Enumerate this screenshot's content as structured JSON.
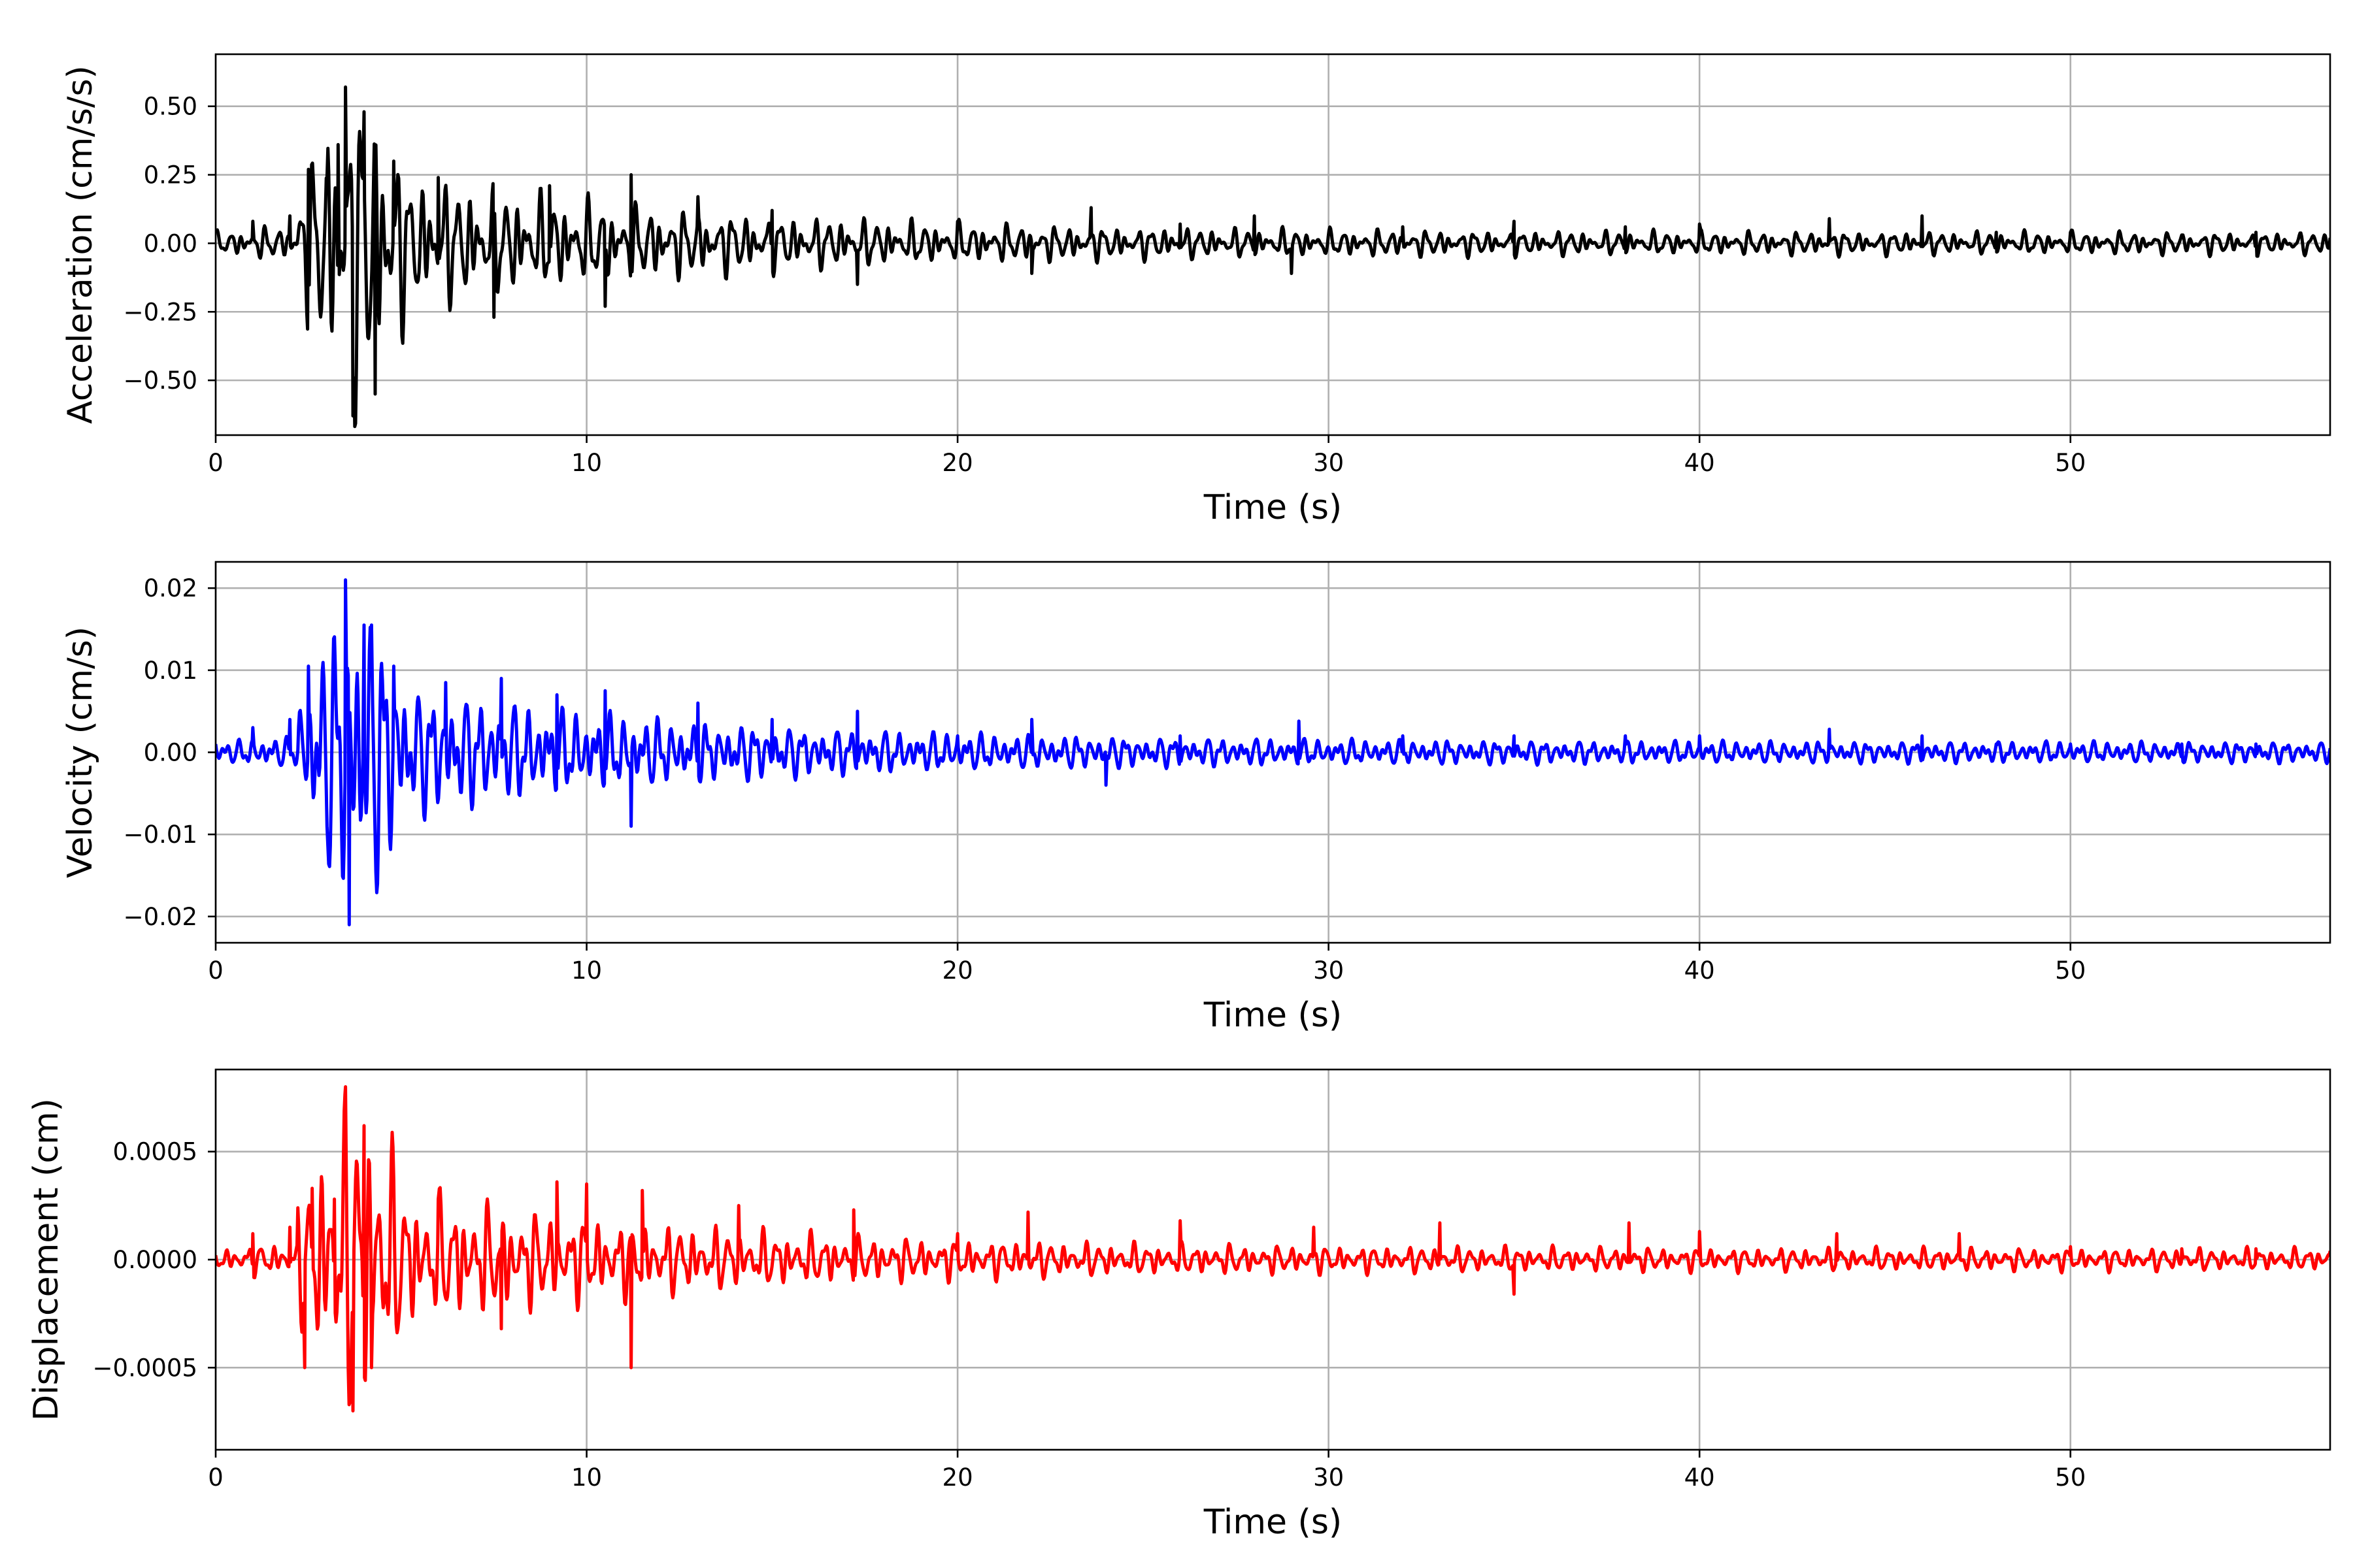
{
  "chart_data": [
    {
      "type": "line",
      "xlabel": "Time (s)",
      "ylabel": "Acceleration (cm/s/s)",
      "xlim": [
        0,
        57
      ],
      "ylim": [
        -0.7,
        0.69
      ],
      "xticks": [
        0,
        10,
        20,
        30,
        40,
        50
      ],
      "xtick_labels": [
        "0",
        "10",
        "20",
        "30",
        "40",
        "50"
      ],
      "yticks": [
        0.5,
        0.25,
        0.0,
        -0.25,
        -0.5
      ],
      "ytick_labels": [
        "0.50",
        "0.25",
        "0.00",
        "−0.25",
        "−0.50"
      ],
      "grid": true,
      "color": "#000000",
      "series": [
        {
          "x": [
            0,
            1,
            2,
            2.5,
            3,
            3.3,
            3.5,
            3.7,
            4.0,
            4.3,
            4.8,
            6,
            7.5,
            9,
            10.5,
            11.2,
            13,
            15,
            17.3,
            20,
            22,
            23.6,
            26,
            28,
            29,
            32,
            35,
            38,
            40,
            43.5,
            46,
            48,
            50,
            53,
            55,
            57
          ],
          "y": [
            0.04,
            0.08,
            0.1,
            0.27,
            0.24,
            0.36,
            0.57,
            -0.63,
            0.48,
            -0.55,
            0.3,
            0.24,
            -0.27,
            0.21,
            -0.23,
            0.25,
            0.17,
            0.12,
            -0.15,
            0.08,
            -0.11,
            0.13,
            0.07,
            0.1,
            -0.11,
            0.06,
            0.08,
            0.06,
            0.07,
            0.09,
            0.1,
            0.04,
            0.04,
            0.03,
            0.04,
            0.02
          ]
        }
      ]
    },
    {
      "type": "line",
      "xlabel": "Time (s)",
      "ylabel": "Velocity (cm/s)",
      "xlim": [
        0,
        57
      ],
      "ylim": [
        -0.0232,
        0.0232
      ],
      "xticks": [
        0,
        10,
        20,
        30,
        40,
        50
      ],
      "xtick_labels": [
        "0",
        "10",
        "20",
        "30",
        "40",
        "50"
      ],
      "yticks": [
        0.02,
        0.01,
        0.0,
        -0.01,
        -0.02
      ],
      "ytick_labels": [
        "0.02",
        "0.01",
        "0.00",
        "−0.01",
        "−0.02"
      ],
      "grid": true,
      "color": "#0000ff",
      "series": [
        {
          "x": [
            0,
            1,
            2,
            2.5,
            3,
            3.5,
            3.6,
            4.0,
            4.2,
            4.8,
            6.2,
            7.7,
            9.2,
            10.5,
            11.2,
            13,
            15,
            17.3,
            20,
            22,
            24,
            26,
            29.2,
            32,
            35,
            38,
            40,
            43.5,
            46,
            48,
            50,
            53,
            55,
            57
          ],
          "y": [
            0.001,
            0.003,
            0.004,
            0.0105,
            -0.009,
            0.021,
            -0.021,
            0.0155,
            0.0155,
            0.0105,
            0.0085,
            0.009,
            0.007,
            0.0075,
            -0.009,
            0.006,
            0.004,
            0.005,
            0.002,
            0.004,
            -0.004,
            0.002,
            0.0038,
            0.002,
            0.002,
            0.002,
            0.002,
            0.0028,
            0.002,
            0.001,
            0.001,
            0.001,
            0.001,
            0.0005
          ]
        }
      ]
    },
    {
      "type": "line",
      "xlabel": "Time (s)",
      "ylabel": "Displacement (cm)",
      "xlim": [
        0,
        57
      ],
      "ylim": [
        -0.00088,
        0.00088
      ],
      "xticks": [
        0,
        10,
        20,
        30,
        40,
        50
      ],
      "xtick_labels": [
        "0",
        "10",
        "20",
        "30",
        "40",
        "50"
      ],
      "yticks": [
        0.0005,
        0.0,
        -0.0005
      ],
      "ytick_labels": [
        "0.0005",
        "0.0000",
        "−0.0005"
      ],
      "grid": true,
      "color": "#ff0000",
      "series": [
        {
          "x": [
            0,
            1,
            2,
            2.4,
            2.6,
            3.2,
            3.5,
            3.7,
            4.0,
            4.2,
            4.8,
            6,
            7.7,
            9.2,
            10.0,
            11.2,
            11.5,
            14.1,
            17.2,
            20,
            21.9,
            26,
            29.6,
            33,
            35,
            38.1,
            40,
            43.7,
            47,
            50,
            53,
            55,
            57
          ],
          "y": [
            2e-05,
            0.00012,
            0.00015,
            -0.0005,
            0.00033,
            0.00028,
            0.0008,
            -0.0007,
            0.00062,
            -0.0005,
            0.00037,
            0.00028,
            -0.00032,
            0.00036,
            0.00035,
            -0.0005,
            0.00032,
            0.00025,
            0.00023,
            0.00012,
            0.00022,
            0.00018,
            0.00015,
            0.00017,
            -0.00016,
            0.00017,
            0.00013,
            0.00012,
            0.00012,
            6e-05,
            5e-05,
            5e-05,
            4e-05
          ]
        }
      ]
    }
  ]
}
